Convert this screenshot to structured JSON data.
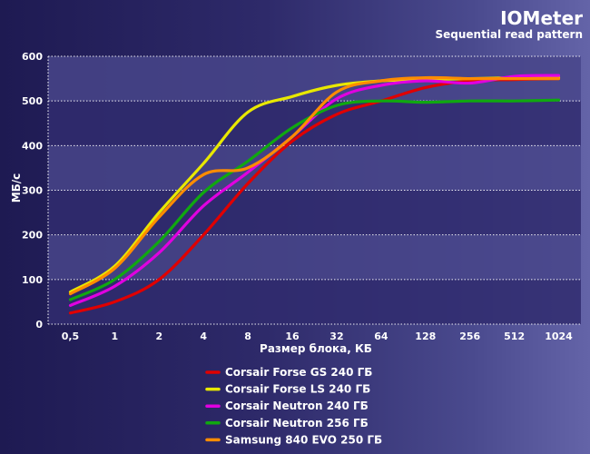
{
  "colors": {
    "plot_band_dark": "#302b6e",
    "plot_band_light": "#48458a",
    "grid": "#ffffff",
    "text": "#ffffff"
  },
  "chart_data": {
    "type": "line",
    "title": "IOMeter",
    "subtitle": "Sequential read pattern",
    "xlabel": "Размер блока, КБ",
    "ylabel": "МБ/с",
    "categories": [
      "0,5",
      "1",
      "2",
      "4",
      "8",
      "16",
      "32",
      "64",
      "128",
      "256",
      "512",
      "1024"
    ],
    "ylim": [
      0,
      600
    ],
    "yticks": [
      0,
      100,
      200,
      300,
      400,
      500,
      600
    ],
    "grid": true,
    "legend_position": "bottom",
    "series": [
      {
        "name": "Corsair Forse GS 240 ГБ",
        "color": "#e00000",
        "values": [
          25,
          50,
          100,
          200,
          315,
          410,
          470,
          500,
          530,
          545,
          548,
          550
        ]
      },
      {
        "name": "Corsair Forse LS 240 ГБ",
        "color": "#e8e800",
        "values": [
          72,
          130,
          250,
          360,
          475,
          510,
          535,
          545,
          548,
          550,
          552,
          552
        ]
      },
      {
        "name": "Corsair Neutron 240 ГБ",
        "color": "#e000e0",
        "values": [
          42,
          85,
          160,
          265,
          340,
          420,
          505,
          535,
          545,
          540,
          555,
          557
        ]
      },
      {
        "name": "Corsair Neutron 256 ГБ",
        "color": "#10a810",
        "values": [
          55,
          100,
          185,
          295,
          365,
          440,
          490,
          500,
          497,
          500,
          500,
          502
        ]
      },
      {
        "name": "Samsung 840 EVO 250 ГБ",
        "color": "#ff8c00",
        "values": [
          68,
          125,
          240,
          335,
          350,
          420,
          520,
          545,
          552,
          550,
          550,
          550
        ]
      }
    ]
  }
}
